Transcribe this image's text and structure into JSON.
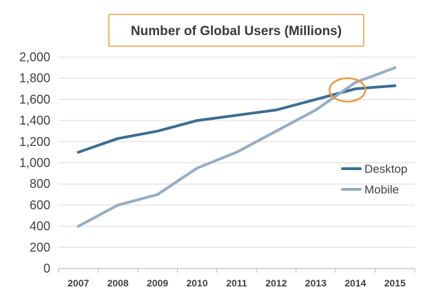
{
  "chart_data": {
    "type": "line",
    "title": "Number of Global Users (Millions)",
    "xlabel": "",
    "ylabel": "",
    "categories": [
      "2007",
      "2008",
      "2009",
      "2010",
      "2011",
      "2012",
      "2013",
      "2014",
      "2015"
    ],
    "y_ticks": [
      "0",
      "200",
      "400",
      "600",
      "800",
      "1,000",
      "1,200",
      "1,400",
      "1,600",
      "1,800",
      "2,000"
    ],
    "ylim": [
      0,
      2000
    ],
    "grid": true,
    "legend_position": "right",
    "series": [
      {
        "name": "Desktop",
        "color": "#3c6e91",
        "values": [
          1100,
          1230,
          1300,
          1400,
          1450,
          1500,
          1600,
          1700,
          1730
        ]
      },
      {
        "name": "Mobile",
        "color": "#95adc2",
        "values": [
          400,
          600,
          700,
          950,
          1100,
          1300,
          1500,
          1760,
          1900
        ]
      }
    ],
    "annotation": {
      "type": "circle",
      "color": "#e89a3c",
      "x": "2013.8",
      "y": 1690
    }
  }
}
